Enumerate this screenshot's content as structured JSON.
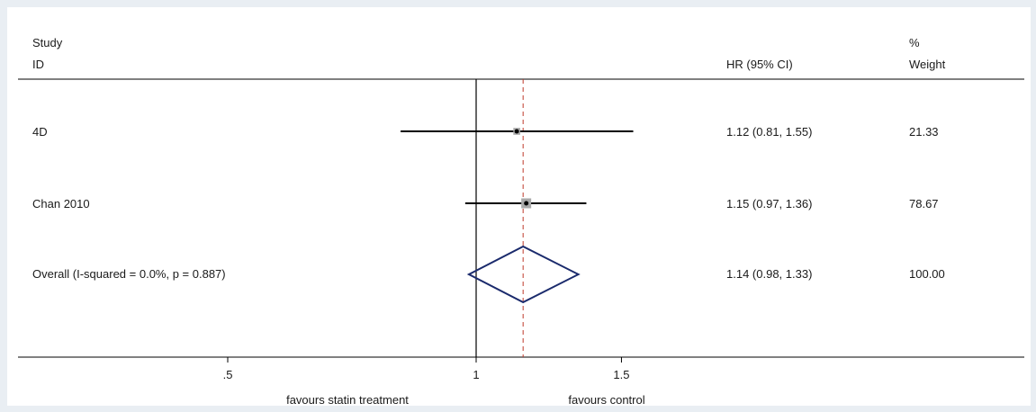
{
  "chart_data": {
    "type": "forest",
    "header": {
      "study_line1": "Study",
      "study_line2": "ID",
      "effect": "HR (95% CI)",
      "weight_line1": "%",
      "weight_line2": "Weight"
    },
    "studies": [
      {
        "id": "4D",
        "estimate": 1.12,
        "lower": 0.81,
        "upper": 1.55,
        "ci_text": "1.12 (0.81, 1.55)",
        "weight": "21.33"
      },
      {
        "id": "Chan 2010",
        "estimate": 1.15,
        "lower": 0.97,
        "upper": 1.36,
        "ci_text": "1.15 (0.97, 1.36)",
        "weight": "78.67"
      }
    ],
    "overall": {
      "label": "Overall  (I-squared = 0.0%, p = 0.887)",
      "estimate": 1.14,
      "lower": 0.98,
      "upper": 1.33,
      "ci_text": "1.14 (0.98, 1.33)",
      "weight": "100.00"
    },
    "x_axis": {
      "scale": "log",
      "ticks": [
        0.5,
        1,
        1.5
      ],
      "tick_labels": [
        ".5",
        "1",
        "1.5"
      ],
      "xlim": [
        0.25,
        2.8
      ],
      "null_line": 1
    },
    "footer": {
      "left": "favours statin treatment",
      "right": "favours control"
    },
    "colors": {
      "ci_line": "#000000",
      "diamond": "#1a2a6c",
      "overall_line": "#c0392b",
      "weight_box": "#a9a9a9"
    }
  }
}
